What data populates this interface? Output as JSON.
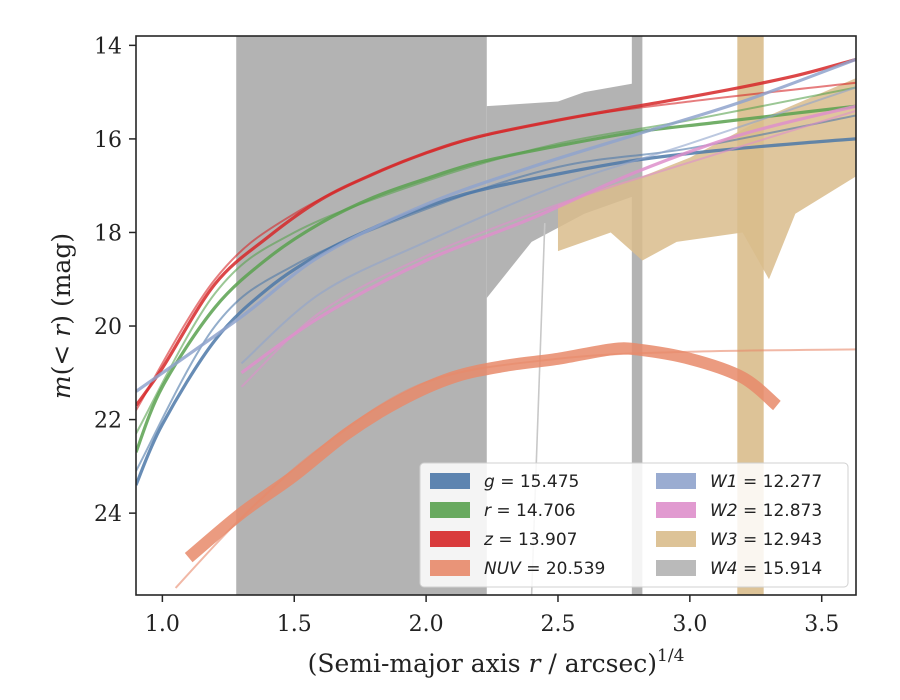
{
  "chart_data": {
    "type": "line",
    "title": "",
    "xlabel": "(Semi-major axis r / arcsec)",
    "xlabel_main": "(Semi-major axis ",
    "xlabel_var": "r",
    "xlabel_mid": " / arcsec)",
    "xlabel_exp": "1/4",
    "ylabel": "m(< r) (mag)",
    "ylabel_pre": "m",
    "ylabel_paren_open": "(",
    "ylabel_var": "< r",
    "ylabel_post": ") (mag)",
    "xlim": [
      0.9,
      3.63
    ],
    "ylim": [
      25.75,
      13.8
    ],
    "y_inverted": true,
    "xticks": [
      1.0,
      1.5,
      2.0,
      2.5,
      3.0,
      3.5
    ],
    "xtick_labels": [
      "1.0",
      "1.5",
      "2.0",
      "2.5",
      "3.0",
      "3.5"
    ],
    "yticks": [
      14,
      16,
      18,
      20,
      22,
      24
    ],
    "ytick_labels": [
      "14",
      "16",
      "18",
      "20",
      "22",
      "24"
    ],
    "grid": false,
    "legend_position": "lower-right",
    "series": [
      {
        "name": "g = 15.475",
        "label_var": "g",
        "label_val": "= 15.475",
        "color": "#4c78a8",
        "x": [
          0.9,
          1.0,
          1.2,
          1.4,
          1.6,
          1.8,
          2.0,
          2.2,
          2.5,
          2.8,
          3.1,
          3.4,
          3.63
        ],
        "y": [
          23.4,
          22.1,
          20.3,
          19.2,
          18.45,
          17.9,
          17.45,
          17.1,
          16.75,
          16.45,
          16.25,
          16.1,
          16.0
        ],
        "x_fit": [
          0.9,
          1.2,
          1.5,
          2.0,
          2.5,
          3.0,
          3.63
        ],
        "y_fit": [
          23.1,
          20.0,
          18.7,
          17.5,
          16.6,
          16.2,
          15.5
        ]
      },
      {
        "name": "r = 14.706",
        "label_var": "r",
        "label_val": "= 14.706",
        "color": "#59a14f",
        "x": [
          0.9,
          1.0,
          1.2,
          1.4,
          1.6,
          1.8,
          2.0,
          2.2,
          2.5,
          2.8,
          3.1,
          3.4,
          3.63
        ],
        "y": [
          22.7,
          21.3,
          19.6,
          18.55,
          17.8,
          17.25,
          16.85,
          16.5,
          16.15,
          15.85,
          15.65,
          15.45,
          15.3
        ],
        "x_fit": [
          0.9,
          1.2,
          1.5,
          2.0,
          2.5,
          3.0,
          3.63
        ],
        "y_fit": [
          22.3,
          19.3,
          18.0,
          16.9,
          16.1,
          15.6,
          14.9
        ]
      },
      {
        "name": "z = 13.907",
        "label_var": "z",
        "label_val": "= 13.907",
        "color": "#d62728",
        "x": [
          0.9,
          1.0,
          1.2,
          1.4,
          1.6,
          1.8,
          2.0,
          2.2,
          2.5,
          2.8,
          3.1,
          3.4,
          3.63
        ],
        "y": [
          21.7,
          20.9,
          19.1,
          18.1,
          17.3,
          16.75,
          16.3,
          15.95,
          15.6,
          15.3,
          15.0,
          14.65,
          14.3
        ],
        "x_fit": [
          0.9,
          1.2,
          1.5,
          2.0,
          2.5,
          3.0,
          3.63
        ],
        "y_fit": [
          21.8,
          19.0,
          17.6,
          16.3,
          15.6,
          15.2,
          14.8
        ]
      },
      {
        "name": "NUV = 20.539",
        "label_var": "NUV",
        "label_val": "= 20.539",
        "color": "#e8896a",
        "x": [
          1.1,
          1.3,
          1.5,
          1.7,
          1.9,
          2.1,
          2.3,
          2.5,
          2.7,
          2.8,
          3.0,
          3.2,
          3.33
        ],
        "y": [
          24.95,
          24.0,
          23.2,
          22.3,
          21.6,
          21.1,
          20.85,
          20.7,
          20.5,
          20.5,
          20.7,
          21.1,
          21.7
        ],
        "x_fit": [
          1.05,
          1.3,
          1.6,
          2.0,
          2.5,
          3.0,
          3.63
        ],
        "y_fit": [
          25.6,
          24.1,
          22.6,
          21.2,
          20.7,
          20.55,
          20.5
        ]
      },
      {
        "name": "W1 = 12.277",
        "label_var": "W1",
        "label_val": "= 12.277",
        "color": "#8fa3cc",
        "x": [
          0.9,
          1.3,
          1.6,
          2.0,
          2.4,
          2.8,
          3.2,
          3.63
        ],
        "y": [
          21.4,
          19.8,
          18.5,
          17.4,
          16.6,
          15.9,
          15.2,
          14.3
        ],
        "x_fit": [
          1.3,
          1.6,
          2.0,
          2.5,
          3.0,
          3.63
        ],
        "y_fit": [
          20.8,
          19.3,
          18.2,
          17.0,
          16.1,
          14.9
        ]
      },
      {
        "name": "W2 = 12.873",
        "label_var": "W2",
        "label_val": "= 12.873",
        "color": "#de8fcb",
        "x": [
          1.3,
          1.6,
          2.0,
          2.4,
          2.8,
          3.2,
          3.63
        ],
        "y": [
          21.0,
          19.8,
          18.6,
          17.7,
          16.7,
          15.9,
          15.3
        ],
        "x_fit": [
          1.3,
          1.6,
          2.0,
          2.5,
          3.0,
          3.63
        ],
        "y_fit": [
          21.3,
          19.7,
          18.5,
          17.4,
          16.5,
          15.4
        ]
      },
      {
        "name": "W3 = 12.943",
        "label_var": "W3",
        "label_val": "= 12.943",
        "color": "#d9bc8c",
        "x": [
          1.53,
          1.8,
          2.1,
          2.3,
          2.6,
          2.8,
          3.0,
          3.2,
          3.4,
          3.63
        ],
        "y": [
          19.0,
          18.8,
          18.3,
          17.6,
          17.2,
          17.0,
          16.5,
          18.0,
          16.3,
          15.2
        ]
      },
      {
        "name": "W4 = 15.914",
        "label_var": "W4",
        "label_val": "= 15.914",
        "color": "#b3b3b3",
        "x": [
          1.28,
          1.6,
          2.0,
          2.23,
          2.5,
          2.8,
          3.2,
          3.63
        ],
        "y": [
          17.8,
          17.2,
          16.4,
          15.5,
          15.3,
          15.6,
          15.9,
          15.9
        ]
      }
    ]
  }
}
